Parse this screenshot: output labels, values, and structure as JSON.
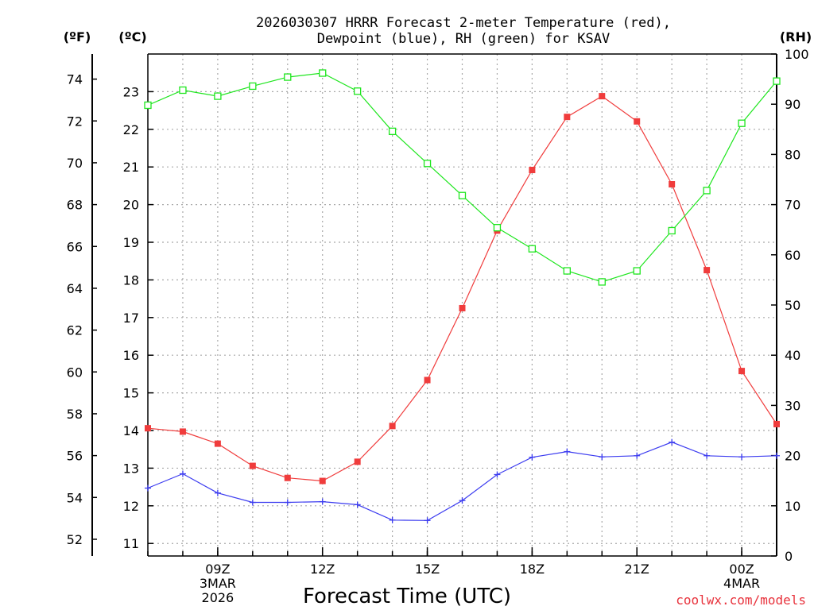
{
  "chart_data": {
    "type": "line",
    "title_line1": "2026030307 HRRR Forecast 2-meter Temperature (red),",
    "title_line2": "Dewpoint (blue), RH (green) for KSAV",
    "xlabel": "Forecast Time (UTC)",
    "credit": "coolwx.com/models",
    "units": {
      "f": "(ºF)",
      "c": "(ºC)",
      "rh": "(RH)"
    },
    "x_hours": [
      7,
      8,
      9,
      10,
      11,
      12,
      13,
      14,
      15,
      16,
      17,
      18,
      19,
      20,
      21,
      22,
      23,
      24,
      25
    ],
    "xlim": [
      7,
      25
    ],
    "x_ticks": [
      {
        "hour": 9,
        "lines": [
          "09Z",
          "3MAR",
          "2026"
        ]
      },
      {
        "hour": 12,
        "lines": [
          "12Z"
        ]
      },
      {
        "hour": 15,
        "lines": [
          "15Z"
        ]
      },
      {
        "hour": 18,
        "lines": [
          "18Z"
        ]
      },
      {
        "hour": 21,
        "lines": [
          "21Z"
        ]
      },
      {
        "hour": 24,
        "lines": [
          "00Z",
          "4MAR"
        ]
      }
    ],
    "ylim_c": [
      10.667,
      24.0
    ],
    "yticks_c": [
      11,
      12,
      13,
      14,
      15,
      16,
      17,
      18,
      19,
      20,
      21,
      22,
      23
    ],
    "yticks_f": [
      52,
      54,
      56,
      58,
      60,
      62,
      64,
      66,
      68,
      70,
      72,
      74
    ],
    "ylim_rh": [
      0,
      100
    ],
    "yticks_rh": [
      0,
      10,
      20,
      30,
      40,
      50,
      60,
      70,
      80,
      90,
      100
    ],
    "series": [
      {
        "name": "Temperature",
        "unit": "C",
        "color": "#f03c3c",
        "marker": "filled-square",
        "values": [
          14.06,
          13.97,
          13.65,
          13.06,
          12.74,
          12.66,
          13.17,
          14.12,
          15.34,
          17.25,
          19.31,
          20.92,
          22.33,
          22.88,
          22.21,
          20.54,
          18.26,
          15.58,
          14.17
        ]
      },
      {
        "name": "Dewpoint",
        "unit": "C",
        "color": "#3c3cf0",
        "marker": "plus",
        "values": [
          12.47,
          12.85,
          12.34,
          12.09,
          12.09,
          12.11,
          12.03,
          11.62,
          11.61,
          12.14,
          12.83,
          13.29,
          13.44,
          13.3,
          13.33,
          13.69,
          13.33,
          13.3,
          13.33
        ]
      },
      {
        "name": "RH",
        "unit": "%",
        "color": "#1ee61e",
        "marker": "open-square",
        "values": [
          89.8,
          92.8,
          91.6,
          93.6,
          95.4,
          96.2,
          92.6,
          84.6,
          78.2,
          71.8,
          65.4,
          61.2,
          56.8,
          54.6,
          56.8,
          64.8,
          72.8,
          86.2,
          94.6
        ]
      }
    ]
  }
}
